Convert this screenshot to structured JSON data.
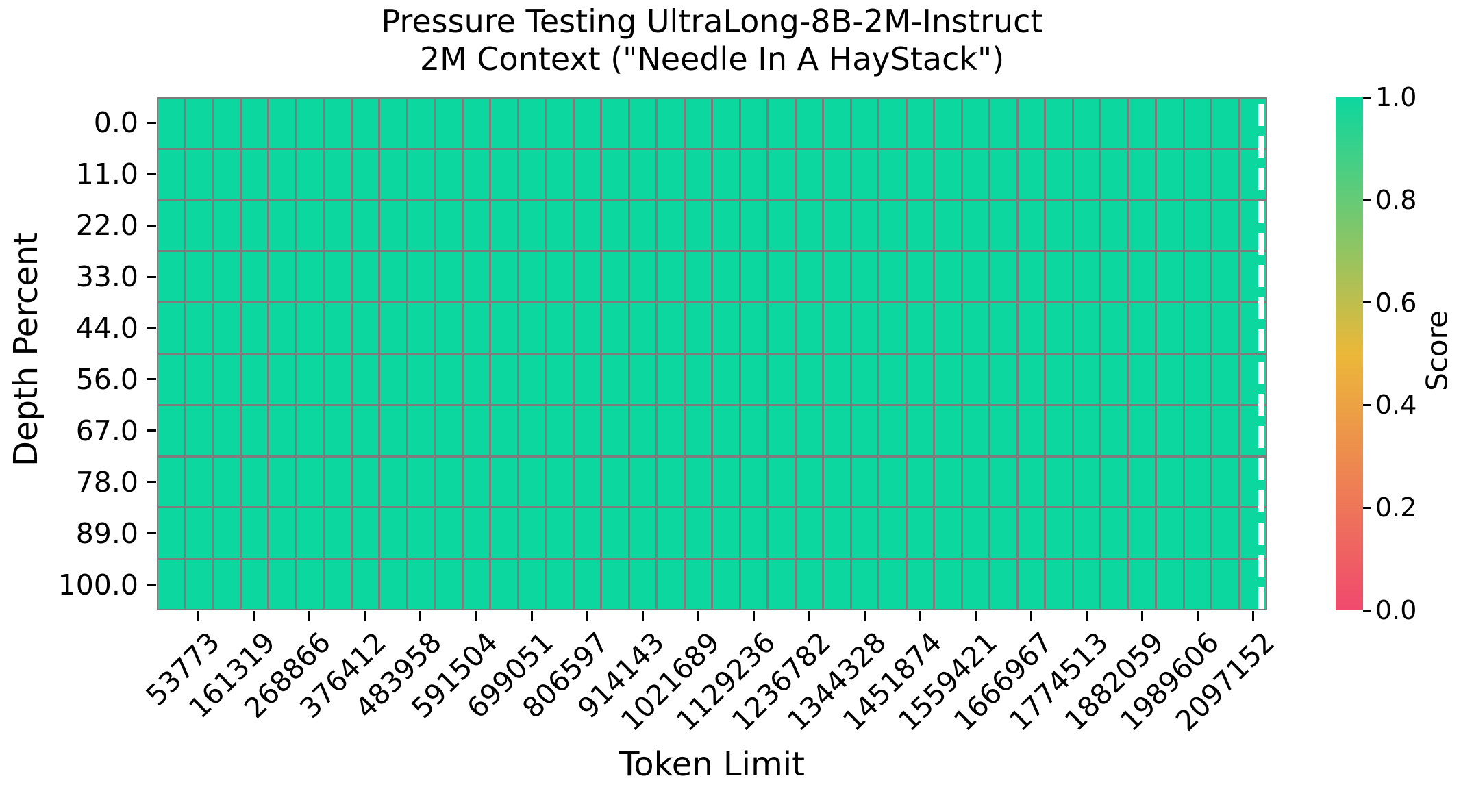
{
  "chart_data": {
    "type": "heatmap",
    "title_line1": "Pressure Testing UltraLong-8B-2M-Instruct",
    "title_line2": "2M Context (\"Needle In A HayStack\")",
    "xlabel": "Token Limit",
    "ylabel": "Depth Percent",
    "colorbar_label": "Score",
    "x_ticklabels": [
      "53773",
      "161319",
      "268866",
      "376412",
      "483958",
      "591504",
      "699051",
      "806597",
      "914143",
      "1021689",
      "1129236",
      "1236782",
      "1344328",
      "1451874",
      "1559421",
      "1666967",
      "1774513",
      "1882059",
      "1989606",
      "2097152"
    ],
    "x_tick_every_n_columns": 2,
    "y_ticklabels": [
      "0.0",
      "11.0",
      "22.0",
      "33.0",
      "44.0",
      "56.0",
      "67.0",
      "78.0",
      "89.0",
      "100.0"
    ],
    "colorbar_ticklabels": [
      "1.0",
      "0.8",
      "0.6",
      "0.4",
      "0.2",
      "0.0"
    ],
    "score_range": [
      0.0,
      1.0
    ],
    "n_rows": 10,
    "n_cols": 40,
    "cell_score_uniform": 1.0,
    "values": [
      [
        1,
        1,
        1,
        1,
        1,
        1,
        1,
        1,
        1,
        1,
        1,
        1,
        1,
        1,
        1,
        1,
        1,
        1,
        1,
        1,
        1,
        1,
        1,
        1,
        1,
        1,
        1,
        1,
        1,
        1,
        1,
        1,
        1,
        1,
        1,
        1,
        1,
        1,
        1,
        1
      ],
      [
        1,
        1,
        1,
        1,
        1,
        1,
        1,
        1,
        1,
        1,
        1,
        1,
        1,
        1,
        1,
        1,
        1,
        1,
        1,
        1,
        1,
        1,
        1,
        1,
        1,
        1,
        1,
        1,
        1,
        1,
        1,
        1,
        1,
        1,
        1,
        1,
        1,
        1,
        1,
        1
      ],
      [
        1,
        1,
        1,
        1,
        1,
        1,
        1,
        1,
        1,
        1,
        1,
        1,
        1,
        1,
        1,
        1,
        1,
        1,
        1,
        1,
        1,
        1,
        1,
        1,
        1,
        1,
        1,
        1,
        1,
        1,
        1,
        1,
        1,
        1,
        1,
        1,
        1,
        1,
        1,
        1
      ],
      [
        1,
        1,
        1,
        1,
        1,
        1,
        1,
        1,
        1,
        1,
        1,
        1,
        1,
        1,
        1,
        1,
        1,
        1,
        1,
        1,
        1,
        1,
        1,
        1,
        1,
        1,
        1,
        1,
        1,
        1,
        1,
        1,
        1,
        1,
        1,
        1,
        1,
        1,
        1,
        1
      ],
      [
        1,
        1,
        1,
        1,
        1,
        1,
        1,
        1,
        1,
        1,
        1,
        1,
        1,
        1,
        1,
        1,
        1,
        1,
        1,
        1,
        1,
        1,
        1,
        1,
        1,
        1,
        1,
        1,
        1,
        1,
        1,
        1,
        1,
        1,
        1,
        1,
        1,
        1,
        1,
        1
      ],
      [
        1,
        1,
        1,
        1,
        1,
        1,
        1,
        1,
        1,
        1,
        1,
        1,
        1,
        1,
        1,
        1,
        1,
        1,
        1,
        1,
        1,
        1,
        1,
        1,
        1,
        1,
        1,
        1,
        1,
        1,
        1,
        1,
        1,
        1,
        1,
        1,
        1,
        1,
        1,
        1
      ],
      [
        1,
        1,
        1,
        1,
        1,
        1,
        1,
        1,
        1,
        1,
        1,
        1,
        1,
        1,
        1,
        1,
        1,
        1,
        1,
        1,
        1,
        1,
        1,
        1,
        1,
        1,
        1,
        1,
        1,
        1,
        1,
        1,
        1,
        1,
        1,
        1,
        1,
        1,
        1,
        1
      ],
      [
        1,
        1,
        1,
        1,
        1,
        1,
        1,
        1,
        1,
        1,
        1,
        1,
        1,
        1,
        1,
        1,
        1,
        1,
        1,
        1,
        1,
        1,
        1,
        1,
        1,
        1,
        1,
        1,
        1,
        1,
        1,
        1,
        1,
        1,
        1,
        1,
        1,
        1,
        1,
        1
      ],
      [
        1,
        1,
        1,
        1,
        1,
        1,
        1,
        1,
        1,
        1,
        1,
        1,
        1,
        1,
        1,
        1,
        1,
        1,
        1,
        1,
        1,
        1,
        1,
        1,
        1,
        1,
        1,
        1,
        1,
        1,
        1,
        1,
        1,
        1,
        1,
        1,
        1,
        1,
        1,
        1
      ],
      [
        1,
        1,
        1,
        1,
        1,
        1,
        1,
        1,
        1,
        1,
        1,
        1,
        1,
        1,
        1,
        1,
        1,
        1,
        1,
        1,
        1,
        1,
        1,
        1,
        1,
        1,
        1,
        1,
        1,
        1,
        1,
        1,
        1,
        1,
        1,
        1,
        1,
        1,
        1,
        1
      ]
    ],
    "colors": {
      "colormap_stops": {
        "0.0": "#F0496E",
        "0.5": "#EBB839",
        "1.0": "#0CD79F"
      },
      "cell_color_at_score_1": "#11d2a0",
      "grid_line": "#7d7d7d",
      "dashed_line": "#ffffff",
      "text": "#000000",
      "background": "#ffffff"
    },
    "annotations": [
      {
        "kind": "vertical-dashed-line",
        "color": "#ffffff",
        "x_fraction_of_plot": 0.993
      }
    ],
    "legend_position": "right-colorbar",
    "grid": true
  }
}
